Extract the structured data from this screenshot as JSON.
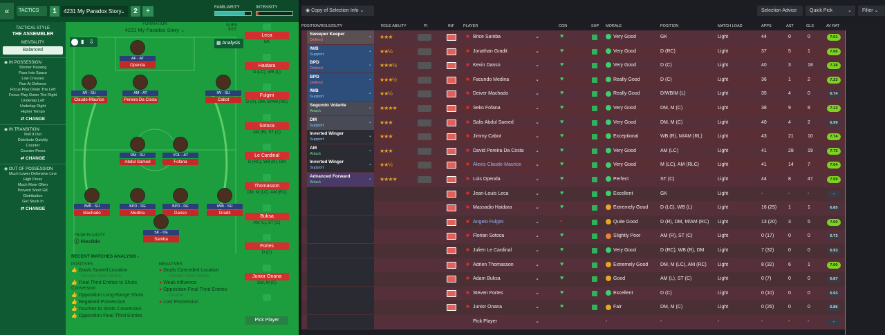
{
  "topbar": {
    "back": "«",
    "tactics_tab": "TACTICS",
    "tactic_slot_1": "1",
    "tactic_name": "4231 My Paradox Story",
    "tactic_slot_2": "2",
    "add": "+",
    "familiarity_label": "FAMILIARITY",
    "intensity_label": "INTENSITY",
    "familiarity_level": 0.82,
    "intensity_level": 0.05,
    "copy_selection": "Copy of Selection Info",
    "selection_advice": "Selection Advice",
    "quick_pick": "Quick Pick",
    "filter": "Filter"
  },
  "left": {
    "tactical_style_label": "TACTICAL STYLE",
    "tactical_style": "THE ASSEMBLER",
    "mentality_label": "MENTALITY",
    "mentality": "Balanced",
    "in_possession_label": "IN POSSESSION",
    "in_possession": [
      "Shorter Passing",
      "Pass Into Space",
      "Low Crosses",
      "Run At Defence",
      "Focus Play Down The Left",
      "Focus Play Down The Right",
      "Underlap Left",
      "Underlap Right",
      "Higher Tempo"
    ],
    "in_transition_label": "IN TRANSITION",
    "in_transition": [
      "Roll It Out",
      "Distribute Quickly",
      "Counter",
      "Counter-Press"
    ],
    "out_possession_label": "OUT OF POSSESSION",
    "out_possession": [
      "Much Lower Defensive Line",
      "High Press",
      "Much More Often",
      "Prevent Short GK",
      "Distribution",
      "Get Stuck In"
    ],
    "change": "CHANGE"
  },
  "pitch": {
    "formation_label": "FORMATION",
    "formation": "4231 My Paradox Story",
    "subs_label": "SUBS:",
    "subs_count": "9/15",
    "analysis": "Analysis",
    "fluidity_label": "TEAM FLUIDITY",
    "fluidity": "Flexible",
    "players": [
      {
        "role": "AF - AT",
        "name": "Openda"
      },
      {
        "role": "IW - SU",
        "name": "Claude-Maurice"
      },
      {
        "role": "AM - AT",
        "name": "Pereira Da Costa"
      },
      {
        "role": "IW - SU",
        "name": "Cabot"
      },
      {
        "role": "DM - SU",
        "name": "Abdul Samed"
      },
      {
        "role": "VOL - AT",
        "name": "Fofana"
      },
      {
        "role": "IWB - SU",
        "name": "Machado"
      },
      {
        "role": "BPD - DE",
        "name": "Medina"
      },
      {
        "role": "BPD - DE",
        "name": "Danso"
      },
      {
        "role": "IWB - SU",
        "name": "Gradit"
      },
      {
        "role": "SK - DE",
        "name": "Samba"
      }
    ]
  },
  "analysis": {
    "title": "RECENT MATCHES ANALYSIS",
    "positives_label": "POSITIVES",
    "positives": [
      {
        "text": "Goals Scored Location",
        "sub": "- Penalty Area Centre"
      },
      {
        "text": "Final Third Entries to Shots Conversion",
        "sub": ""
      },
      {
        "text": "Opposition Long-Range Shots",
        "sub": ""
      },
      {
        "text": "Regained Possession",
        "sub": ""
      },
      {
        "text": "Touches to Shots Conversion",
        "sub": ""
      },
      {
        "text": "Opposition Final Third Entries",
        "sub": ""
      }
    ],
    "negatives_label": "NEGATIVES",
    "negatives": [
      {
        "text": "Goals Conceded Location",
        "sub": "- Penalty Area Centre"
      },
      {
        "text": "Weak Influence",
        "sub": ""
      },
      {
        "text": "Opposition Final Third Entries",
        "sub": "- Central"
      },
      {
        "text": "Lost Possession",
        "sub": ""
      }
    ]
  },
  "subs": [
    {
      "name": "Leca",
      "pos": "GK"
    },
    {
      "name": "Haidara",
      "pos": "D (LC), WB (L)"
    },
    {
      "name": "Fulgini",
      "pos": "D (R), DM, M/AM (RC)"
    },
    {
      "name": "Sotoca",
      "pos": "AM (R), ST (C)"
    },
    {
      "name": "Le Cardinal",
      "pos": "D (RC), WB (R), DM"
    },
    {
      "name": "Thomasson",
      "pos": "DM, M (LC), AM (RC)"
    },
    {
      "name": "Buksa",
      "pos": "AM (L), ST (C)"
    },
    {
      "name": "Fortes",
      "pos": "D (C)"
    },
    {
      "name": "Junior Onana",
      "pos": "DM, M (C)"
    },
    {
      "name": "Pick Player",
      "pos": ""
    }
  ],
  "table": {
    "headers": [
      "POSITION/ROLE/DUTY",
      "ROLE ABILITY",
      "PI",
      "INF",
      "PLAYER",
      "CON",
      "SHP",
      "MORALE",
      "POSITION",
      "MATCH LOAD",
      "APPS",
      "AST",
      "GLS",
      "AV RAT"
    ],
    "rows": [
      {
        "pos": "GK",
        "role": "Sweeper Keeper",
        "duty": "Defend",
        "stars": "★★★",
        "player": "Brice Samba",
        "morale": "Very Good",
        "position": "GK",
        "load": "Light",
        "apps": "44",
        "ast": "0",
        "gls": "0",
        "rat": "7.01"
      },
      {
        "pos": "DR",
        "role": "IWB",
        "duty": "Support",
        "stars": "★★½",
        "player": "Jonathan Gradit",
        "morale": "Very Good",
        "position": "D (RC)",
        "load": "Light",
        "apps": "37",
        "ast": "5",
        "gls": "1",
        "rat": "7.06"
      },
      {
        "pos": "DCR",
        "role": "BPD",
        "duty": "Defend",
        "stars": "★★★½",
        "player": "Kevin Danso",
        "morale": "Very Good",
        "position": "D (C)",
        "load": "Light",
        "apps": "40",
        "ast": "3",
        "gls": "18",
        "rat": "7.38"
      },
      {
        "pos": "DCL",
        "role": "BPD",
        "duty": "Defend",
        "stars": "★★★½",
        "player": "Facundo Medina",
        "morale": "Really Good",
        "position": "D (C)",
        "load": "Light",
        "apps": "36",
        "ast": "1",
        "gls": "2",
        "rat": "7.23"
      },
      {
        "pos": "DL",
        "role": "IWB",
        "duty": "Support",
        "stars": "★★½",
        "player": "Deiver Machado",
        "morale": "Really Good",
        "position": "D/WB/M (L)",
        "load": "Light",
        "apps": "35",
        "ast": "4",
        "gls": "0",
        "rat": "6.74"
      },
      {
        "pos": "DMCR",
        "role": "Segundo Volante",
        "duty": "Attack",
        "stars": "★★★★",
        "player": "Seko Fofana",
        "morale": "Very Good",
        "position": "DM, M (C)",
        "load": "Light",
        "apps": "38",
        "ast": "9",
        "gls": "8",
        "rat": "7.12"
      },
      {
        "pos": "DMCL",
        "role": "DM",
        "duty": "Support",
        "stars": "★★★",
        "player": "Salis Abdul Samed",
        "morale": "Very Good",
        "position": "DM, M (C)",
        "load": "Light",
        "apps": "40",
        "ast": "4",
        "gls": "2",
        "rat": "6.99"
      },
      {
        "pos": "AMR",
        "role": "Inverted Winger",
        "duty": "Support",
        "stars": "★★★",
        "player": "Jimmy Cabot",
        "morale": "Exceptional",
        "position": "WB (R), M/AM (RL)",
        "load": "Light",
        "apps": "43",
        "ast": "21",
        "gls": "10",
        "rat": "7.74"
      },
      {
        "pos": "AMC",
        "role": "AM",
        "duty": "Attack",
        "stars": "★★★",
        "player": "David Pereira Da Costa",
        "morale": "Very Good",
        "position": "AM (LC)",
        "load": "Light",
        "apps": "41",
        "ast": "28",
        "gls": "19",
        "rat": "7.75"
      },
      {
        "pos": "AML",
        "role": "Inverted Winger",
        "duty": "Support",
        "stars": "★★½",
        "player": "Alexis Claude-Maurice",
        "morale": "Very Good",
        "position": "M (LC), AM (RLC)",
        "load": "Light",
        "apps": "41",
        "ast": "14",
        "gls": "7",
        "rat": "7.04"
      },
      {
        "pos": "STC",
        "role": "Advanced Forward",
        "duty": "Attack",
        "stars": "★★★★",
        "player": "Lois Openda",
        "morale": "Perfect",
        "position": "ST (C)",
        "load": "Light",
        "apps": "44",
        "ast": "8",
        "gls": "47",
        "rat": "7.59"
      },
      {
        "pos": "S1",
        "role": "",
        "duty": "",
        "stars": "",
        "player": "Jean-Louis Leca",
        "morale": "Excellent",
        "position": "GK",
        "load": "Light",
        "apps": "-",
        "ast": "-",
        "gls": "-",
        "rat": "-"
      },
      {
        "pos": "S2",
        "role": "",
        "duty": "",
        "stars": "",
        "player": "Massadio Haidara",
        "morale": "Extremely Good",
        "position": "D (LC), WB (L)",
        "load": "Light",
        "apps": "16 (25)",
        "ast": "1",
        "gls": "1",
        "rat": "6.85"
      },
      {
        "pos": "S3",
        "role": "",
        "duty": "",
        "stars": "",
        "player": "Angelo Fulgini",
        "morale": "Quite Good",
        "position": "D (R), DM, M/AM (RC)",
        "load": "Light",
        "apps": "13 (20)",
        "ast": "3",
        "gls": "5",
        "rat": "7.00"
      },
      {
        "pos": "S4",
        "role": "",
        "duty": "",
        "stars": "",
        "player": "Florian Sotoca",
        "morale": "Slightly Poor",
        "position": "AM (R), ST (C)",
        "load": "Light",
        "apps": "0 (17)",
        "ast": "0",
        "gls": "0",
        "rat": "6.73"
      },
      {
        "pos": "S5",
        "role": "",
        "duty": "",
        "stars": "",
        "player": "Julien Le Cardinal",
        "morale": "Very Good",
        "position": "D (RC), WB (R), DM",
        "load": "Light",
        "apps": "7 (32)",
        "ast": "0",
        "gls": "0",
        "rat": "6.93"
      },
      {
        "pos": "S6",
        "role": "",
        "duty": "",
        "stars": "",
        "player": "Adrien Thomasson",
        "morale": "Extremely Good",
        "position": "DM, M (LC), AM (RC)",
        "load": "Light",
        "apps": "8 (32)",
        "ast": "6",
        "gls": "1",
        "rat": "7.00"
      },
      {
        "pos": "S7",
        "role": "",
        "duty": "",
        "stars": "",
        "player": "Adam Buksa",
        "morale": "Good",
        "position": "AM (L), ST (C)",
        "load": "Light",
        "apps": "0 (7)",
        "ast": "0",
        "gls": "0",
        "rat": "6.87"
      },
      {
        "pos": "S8",
        "role": "",
        "duty": "",
        "stars": "",
        "player": "Steven Fortes",
        "morale": "Excellent",
        "position": "D (C)",
        "load": "Light",
        "apps": "0 (10)",
        "ast": "0",
        "gls": "0",
        "rat": "6.93"
      },
      {
        "pos": "S9",
        "role": "",
        "duty": "",
        "stars": "",
        "player": "Junior Onana",
        "morale": "Fair",
        "position": "DM, M (C)",
        "load": "Light",
        "apps": "0 (26)",
        "ast": "0",
        "gls": "0",
        "rat": "6.86"
      },
      {
        "pos": "S10",
        "role": "",
        "duty": "",
        "stars": "",
        "player": "Pick Player",
        "morale": "-",
        "position": "-",
        "load": "-",
        "apps": "-",
        "ast": "-",
        "gls": "-",
        "rat": "-"
      }
    ]
  }
}
